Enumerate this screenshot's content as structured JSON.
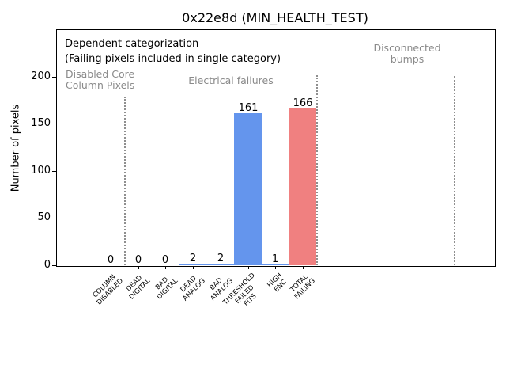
{
  "title": "0x22e8d (MIN_HEALTH_TEST)",
  "annotations": {
    "line1": "Dependent categorization",
    "line2": "(Failing pixels included in single category)"
  },
  "sections": [
    {
      "label": "Disabled Core\nColumn Pixels"
    },
    {
      "label": "Electrical failures"
    },
    {
      "label": "Disconnected\nbumps"
    }
  ],
  "chart_data": {
    "type": "bar",
    "title": "0x22e8d (MIN_HEALTH_TEST)",
    "xlabel": "",
    "ylabel": "Number of pixels",
    "categories": [
      "COLUMN\nDISABLED",
      "DEAD\nDIGITAL",
      "BAD\nDIGITAL",
      "DEAD\nANALOG",
      "BAD\nANALOG",
      "THRESHOLD\nFAILED\nFITS",
      "HIGH\nENC",
      "TOTAL\nFAILING"
    ],
    "values": [
      0,
      0,
      0,
      2,
      2,
      161,
      1,
      166
    ],
    "bar_colors": [
      "#6495ED",
      "#6495ED",
      "#6495ED",
      "#6495ED",
      "#6495ED",
      "#6495ED",
      "#6495ED",
      "#F08080"
    ],
    "value_labels": [
      "0",
      "0",
      "0",
      "2",
      "2",
      "161",
      "1",
      "166"
    ],
    "yticks": [
      0,
      50,
      100,
      150,
      200
    ],
    "ylim": [
      0,
      250
    ],
    "grid": false,
    "legend": "none",
    "separators_at_category": [
      0.5,
      7.5,
      12.5
    ],
    "separator_color": "#8f8f8f",
    "section_label_color": "#8a8a8a",
    "text_color": "#000000"
  }
}
